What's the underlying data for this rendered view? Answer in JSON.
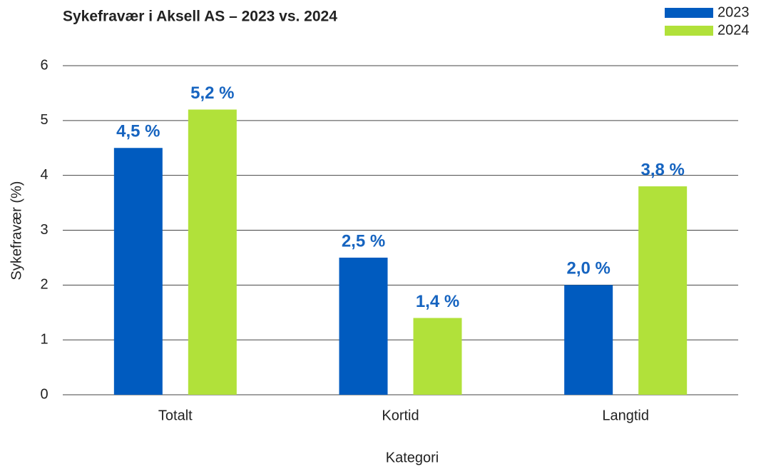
{
  "chart_data": {
    "type": "bar",
    "title": "Sykefravær i Aksell AS – 2023 vs. 2024",
    "x_label": "Kategori",
    "y_label": "Sykefravær (%)",
    "categories": [
      "Totalt",
      "Kortid",
      "Langtid"
    ],
    "series": [
      {
        "name": "2023",
        "color": "#005bbf",
        "values": [
          4.5,
          2.5,
          2.0
        ],
        "value_labels": [
          "4,5 %",
          "2,5 %",
          "2,0 %"
        ]
      },
      {
        "name": "2024",
        "color": "#b1e13a",
        "values": [
          5.2,
          1.4,
          3.8
        ],
        "value_labels": [
          "5,2 %",
          "1,4 %",
          "3,8 %"
        ]
      }
    ],
    "ylim": [
      0,
      6
    ],
    "yticks": [
      0,
      1,
      2,
      3,
      4,
      5,
      6
    ],
    "grid": true,
    "legend": "top-right"
  }
}
